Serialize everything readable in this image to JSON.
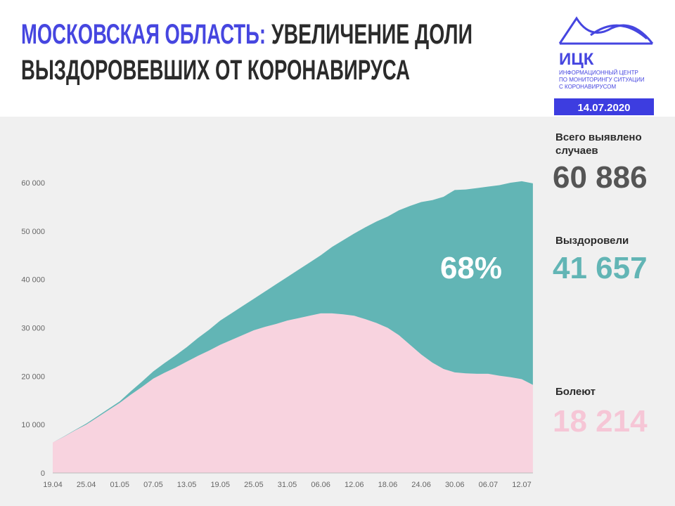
{
  "header": {
    "title": [
      "МОСКОВСКАЯ ОБЛАСТЬ:",
      "УВЕЛИЧЕНИЕ ДОЛИ",
      "ВЫЗДОРОВЕВШИХ ОТ КОРОНАВИРУСА"
    ],
    "logo": "ИЦК",
    "logo_caption": [
      "ИНФОРМАЦИОННЫЙ ЦЕНТР",
      "ПО МОНИТОРИНГУ СИТУАЦИИ",
      "С КОРОНАВИРУСОМ"
    ],
    "date": "14.07.2020"
  },
  "summary": {
    "total_label": [
      "Всего выявлено",
      "случаев"
    ],
    "total": "60 886",
    "recovered_label": "Выздоровели",
    "recovered": "41 657",
    "active_label": "Болеют",
    "active": "18 214"
  },
  "chart_data": {
    "type": "stacked_area",
    "categories": [
      "19.04",
      null,
      null,
      "25.04",
      null,
      null,
      "01.05",
      null,
      null,
      "07.05",
      null,
      null,
      "13.05",
      null,
      null,
      "19.05",
      null,
      null,
      "25.05",
      null,
      null,
      "31.05",
      null,
      null,
      "06.06",
      null,
      null,
      "12.06",
      null,
      null,
      "18.06",
      null,
      null,
      "24.06",
      null,
      null,
      "30.06",
      null,
      null,
      "06.07",
      null,
      null,
      "12.07",
      null
    ],
    "series": [
      {
        "name": "Болеют",
        "color": "#f8d3df",
        "values": [
          6300,
          7500,
          8800,
          10000,
          11500,
          13000,
          14500,
          16200,
          17800,
          19500,
          20700,
          21800,
          23000,
          24200,
          25300,
          26500,
          27500,
          28500,
          29500,
          30200,
          30800,
          31500,
          32000,
          32500,
          33000,
          33000,
          32800,
          32500,
          31800,
          31000,
          30000,
          28500,
          26500,
          24500,
          22800,
          21500,
          20800,
          20600,
          20500,
          20500,
          20100,
          19800,
          19400,
          18214
        ]
      },
      {
        "name": "Выздоровели",
        "color": "#62b5b5",
        "values": [
          0,
          50,
          100,
          200,
          230,
          270,
          300,
          700,
          1100,
          1500,
          2000,
          2500,
          3000,
          3700,
          4300,
          5000,
          5500,
          6000,
          6500,
          7300,
          8200,
          9000,
          10000,
          11000,
          12000,
          13700,
          15300,
          17000,
          19000,
          21000,
          23000,
          25800,
          28700,
          31500,
          33600,
          35600,
          37700,
          38000,
          38400,
          38700,
          39400,
          40200,
          40900,
          41657
        ]
      }
    ],
    "annotation": "68%",
    "ylim": [
      0,
      60000
    ],
    "yticks": [
      0,
      {
        "value": 10000,
        "label": "10 000"
      },
      {
        "value": 20000,
        "label": "20 000"
      },
      {
        "value": 30000,
        "label": "30 000"
      },
      {
        "value": 40000,
        "label": "40 000"
      },
      {
        "value": 50000,
        "label": "50 000"
      },
      {
        "value": 60000,
        "label": "60 000"
      }
    ]
  }
}
